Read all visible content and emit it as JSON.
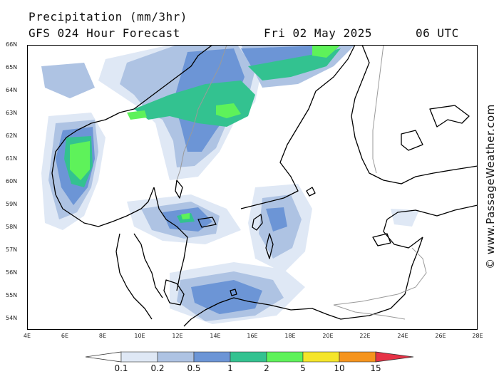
{
  "header": {
    "title": "Precipitation (mm/3hr)",
    "subtitle": "GFS 024 Hour Forecast",
    "date": "Fri 02 May 2025",
    "time": "06 UTC"
  },
  "credit": "© www.PassageWeather.com",
  "lat_labels": [
    "66N",
    "65N",
    "64N",
    "63N",
    "62N",
    "61N",
    "60N",
    "59N",
    "58N",
    "57N",
    "56N",
    "55N",
    "54N"
  ],
  "lon_labels": [
    "4E",
    "6E",
    "8E",
    "10E",
    "12E",
    "14E",
    "16E",
    "18E",
    "20E",
    "22E",
    "24E",
    "26E",
    "28E"
  ],
  "legend": {
    "levels": [
      "0.1",
      "0.2",
      "0.5",
      "1",
      "2",
      "5",
      "10",
      "15"
    ],
    "colors": [
      "#ffffff",
      "#dfe8f5",
      "#aec3e3",
      "#6c95d6",
      "#33c290",
      "#5ef25a",
      "#f5e52a",
      "#f5941d",
      "#e63246"
    ]
  },
  "colors": {
    "land_outline": "#000000",
    "border": "#9a9a9a",
    "frame": "#000000"
  }
}
